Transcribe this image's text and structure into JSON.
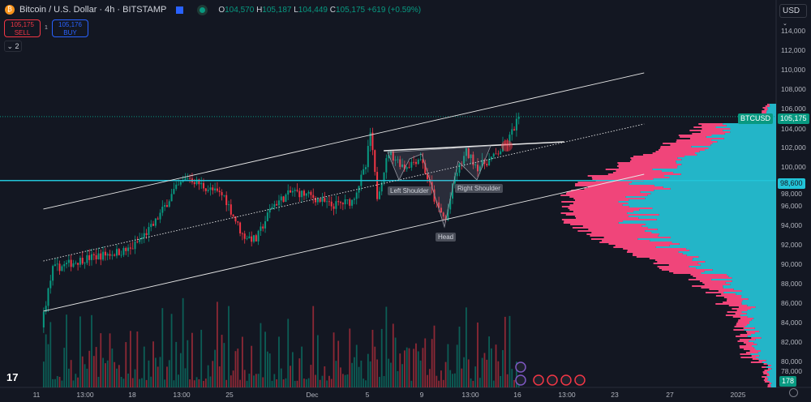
{
  "header": {
    "title": "Bitcoin / U.S. Dollar · 4h · BITSTAMP",
    "o_label": "O",
    "o": "104,570",
    "h_label": "H",
    "h": "105,187",
    "l_label": "L",
    "l": "104,449",
    "c_label": "C",
    "c": "105,175",
    "change": "+619 (+0.59%)"
  },
  "trade": {
    "sell_price": "105,175",
    "sell_label": "SELL",
    "spread": "1",
    "buy_price": "105,176",
    "buy_label": "BUY"
  },
  "indicators_collapsed": "2",
  "currency": "USD",
  "price_axis": [
    "114,000",
    "112,000",
    "110,000",
    "108,000",
    "106,000",
    "104,000",
    "102,000",
    "100,000",
    "98,000",
    "96,000",
    "94,000",
    "92,000",
    "90,000",
    "88,000",
    "86,000",
    "84,000",
    "82,000",
    "80,000",
    "78,000"
  ],
  "time_axis": [
    "11",
    "13:00",
    "18",
    "13:00",
    "25",
    "Dec",
    "5",
    "9",
    "13:00",
    "16",
    "13:00",
    "23",
    "27",
    "2025"
  ],
  "tags": {
    "symbol": "BTCUSD",
    "last_price": "105,175",
    "level": "98,600",
    "volume": "178"
  },
  "annotations": {
    "left_shoulder": "Left Shoulder",
    "right_shoulder": "Right Shoulder",
    "head": "Head"
  },
  "colors": {
    "up": "#089981",
    "down": "#f23645",
    "level": "#22c4d8",
    "profile_up": "#26c6da",
    "profile_down": "#f0457a",
    "background": "#131722"
  },
  "icons": {
    "logo": "bitcoin-icon",
    "flag": "flag-icon",
    "status": "market-open-icon",
    "settings": "gear-icon"
  },
  "chart_data": {
    "type": "candlestick",
    "interval": "4h",
    "ylim": [
      76000,
      115000
    ],
    "last": 105175,
    "path": [
      [
        "2024-11-11T12:00",
        85000
      ],
      [
        "2024-11-12T04:00",
        89500
      ],
      [
        "2024-11-14T08:00",
        90500
      ],
      [
        "2024-11-16T00:00",
        91000
      ],
      [
        "2024-11-17T20:00",
        91500
      ],
      [
        "2024-11-19T12:00",
        94000
      ],
      [
        "2024-11-21T00:00",
        97500
      ],
      [
        "2024-11-22T00:00",
        99000
      ],
      [
        "2024-11-23T04:00",
        98000
      ],
      [
        "2024-11-24T16:00",
        97000
      ],
      [
        "2024-11-26T00:00",
        93000
      ],
      [
        "2024-11-27T00:00",
        92500
      ],
      [
        "2024-11-28T04:00",
        96000
      ],
      [
        "2024-11-29T16:00",
        97500
      ],
      [
        "2024-12-01T00:00",
        97000
      ],
      [
        "2024-12-02T12:00",
        96000
      ],
      [
        "2024-12-04T00:00",
        96500
      ],
      [
        "2024-12-05T00:00",
        100000
      ],
      [
        "2024-12-05T08:00",
        103500
      ],
      [
        "2024-12-05T20:00",
        97000
      ],
      [
        "2024-12-06T16:00",
        101500
      ],
      [
        "2024-12-07T20:00",
        100000
      ],
      [
        "2024-12-09T00:00",
        101000
      ],
      [
        "2024-12-10T04:00",
        96000
      ],
      [
        "2024-12-10T20:00",
        94500
      ],
      [
        "2024-12-11T12:00",
        99000
      ],
      [
        "2024-12-12T08:00",
        101500
      ],
      [
        "2024-12-13T04:00",
        100000
      ],
      [
        "2024-12-14T08:00",
        101000
      ],
      [
        "2024-12-15T08:00",
        102500
      ],
      [
        "2024-12-16T04:00",
        105175
      ]
    ],
    "lines": [
      {
        "kind": "channel-upper",
        "from": [
          "2024-11-11T12:00",
          95667
        ],
        "to": [
          "2024-12-25T08:00",
          109667
        ]
      },
      {
        "kind": "channel-mid",
        "from": [
          "2024-11-11T12:00",
          90333
        ],
        "to": [
          "2024-12-25T08:00",
          104417
        ]
      },
      {
        "kind": "channel-lower",
        "from": [
          "2024-11-11T12:00",
          85167
        ],
        "to": [
          "2024-12-25T08:00",
          99250
        ]
      },
      {
        "kind": "neckline",
        "from": [
          "2024-12-06T08:00",
          101667
        ],
        "to": [
          "2024-12-19T12:00",
          102583
        ]
      }
    ],
    "horizontal_level": 98600
  }
}
